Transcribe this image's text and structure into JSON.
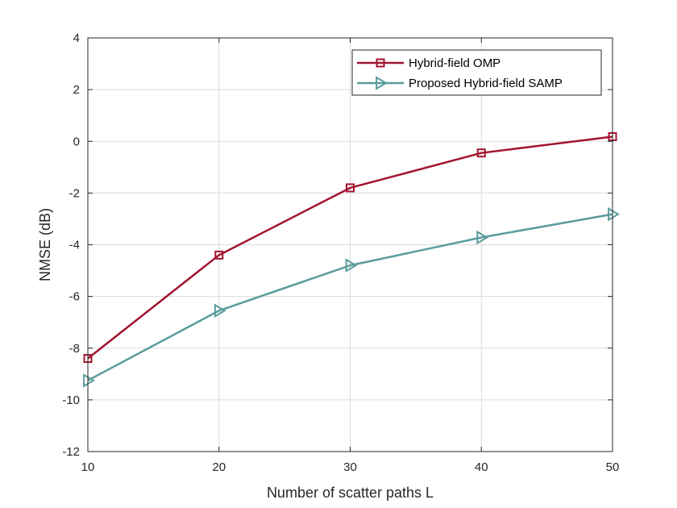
{
  "chart_data": {
    "type": "line",
    "title": "",
    "xlabel": "Number of scatter paths L",
    "ylabel": "NMSE (dB)",
    "x": [
      10,
      20,
      30,
      40,
      50
    ],
    "xlim": [
      10,
      50
    ],
    "ylim": [
      -12,
      4
    ],
    "xticks": [
      "10",
      "20",
      "30",
      "40",
      "50"
    ],
    "yticks": [
      "-12",
      "-10",
      "-8",
      "-6",
      "-4",
      "-2",
      "0",
      "2",
      "4"
    ],
    "grid": true,
    "legend_position": "top-right",
    "series": [
      {
        "name": "Hybrid-field OMP",
        "values": [
          -8.4,
          -4.4,
          -1.8,
          -0.45,
          0.18
        ],
        "color": "#A2142F",
        "marker": "square"
      },
      {
        "name": "Proposed Hybrid-field SAMP",
        "values": [
          -9.25,
          -6.55,
          -4.8,
          -3.72,
          -2.82
        ],
        "color": "#5A9C9C",
        "marker": "triangle-right"
      }
    ]
  }
}
